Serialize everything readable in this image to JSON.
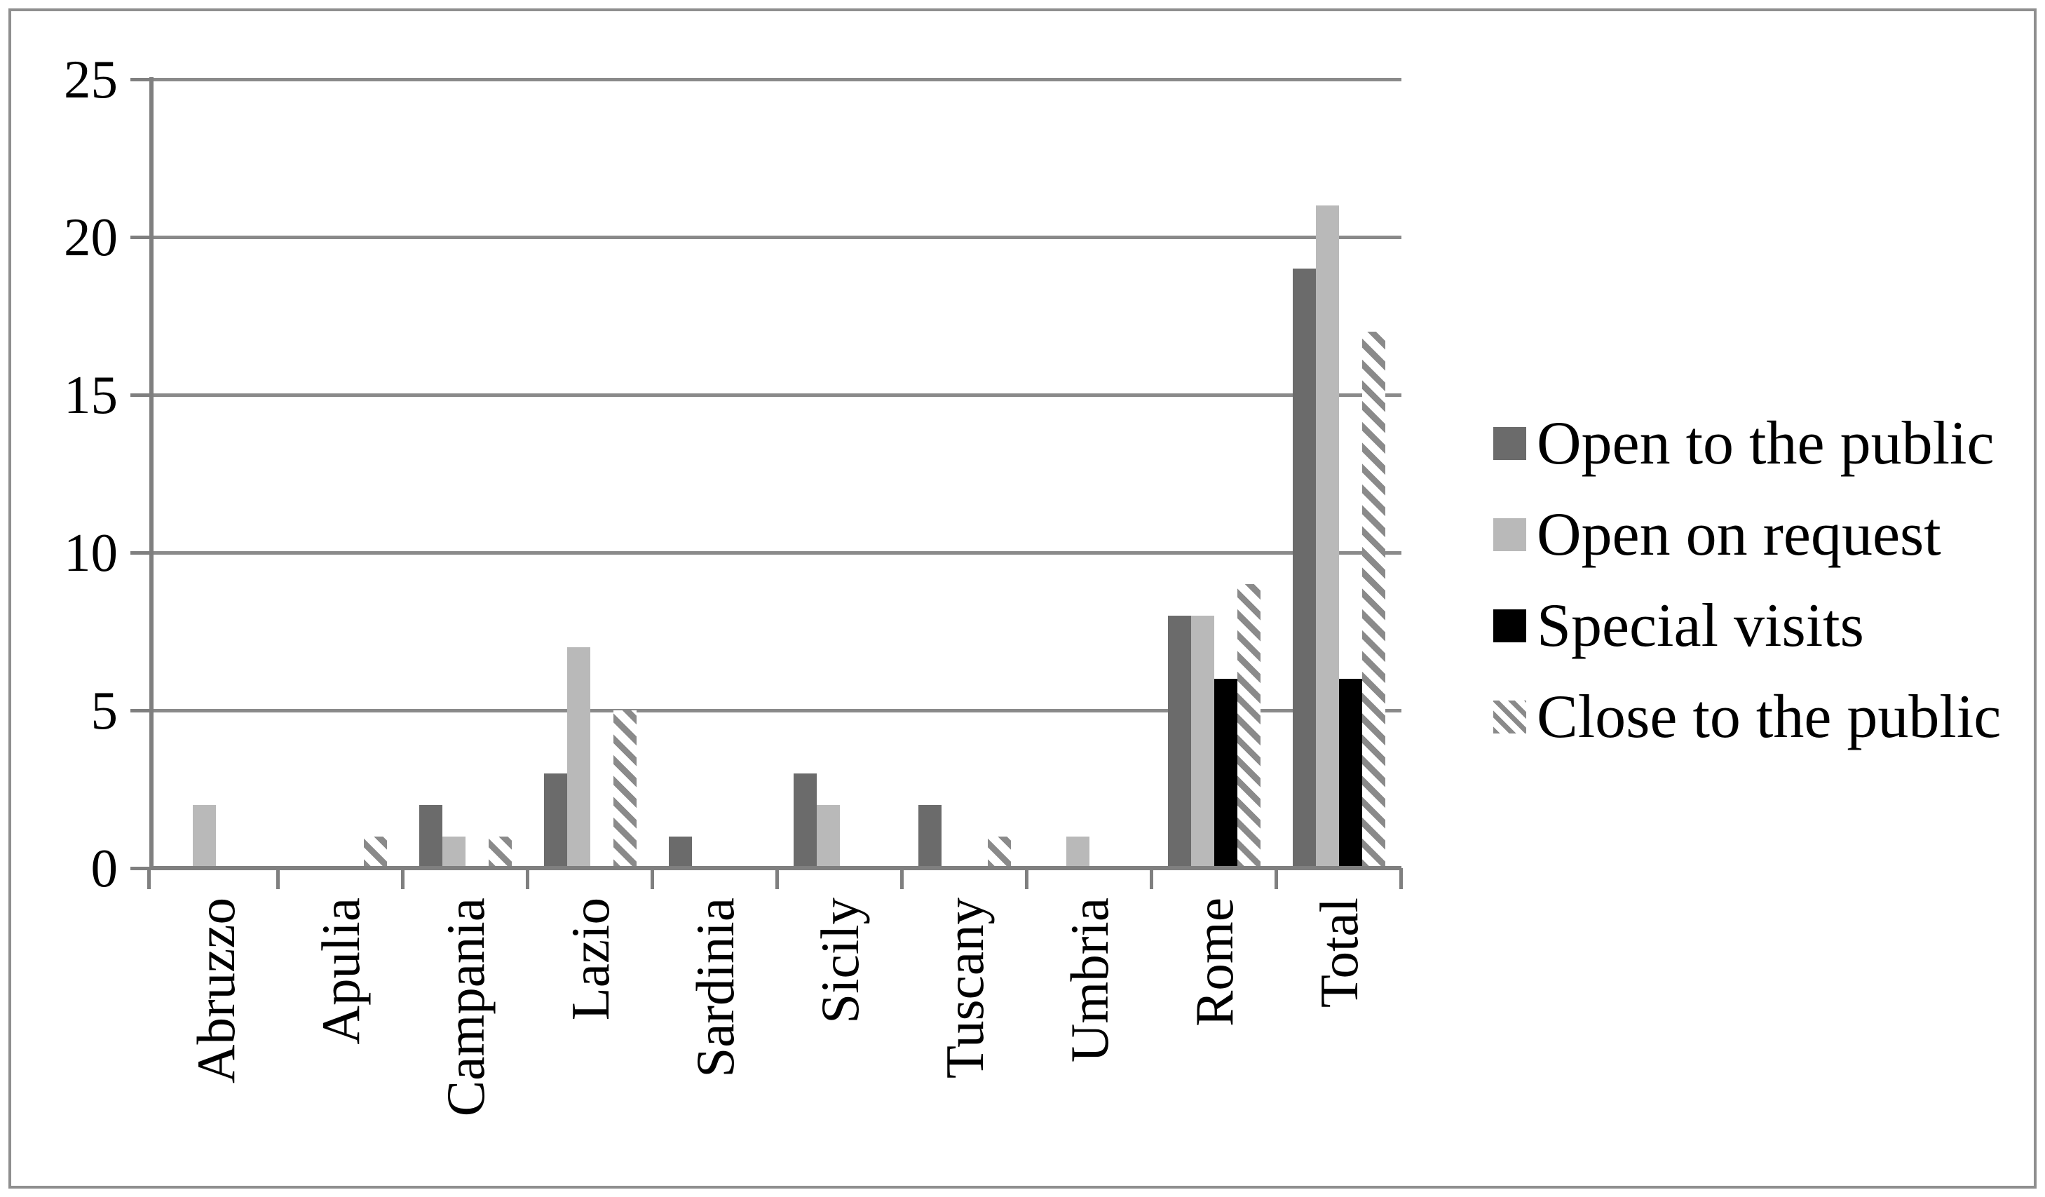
{
  "chart_data": {
    "type": "bar",
    "title": "",
    "categories": [
      "Abruzzo",
      "Apulia",
      "Campania",
      "Lazio",
      "Sardinia",
      "Sicily",
      "Tuscany",
      "Umbria",
      "Rome",
      "Total"
    ],
    "series": [
      {
        "name": "Open to the public",
        "swatch": "solid",
        "color": "#6b6b6b",
        "values": [
          0,
          0,
          2,
          3,
          1,
          3,
          2,
          0,
          8,
          19
        ]
      },
      {
        "name": "Open on request",
        "swatch": "solid",
        "color": "#b9b9b9",
        "values": [
          2,
          0,
          1,
          7,
          0,
          2,
          0,
          1,
          8,
          21
        ]
      },
      {
        "name": "Special visits",
        "swatch": "solid",
        "color": "#000000",
        "values": [
          0,
          0,
          0,
          0,
          0,
          0,
          0,
          0,
          6,
          6
        ]
      },
      {
        "name": "Close to the public",
        "swatch": "hatch",
        "color": "#8a8a8a",
        "hatch_bg": "#ffffff",
        "values": [
          0,
          1,
          1,
          5,
          0,
          0,
          1,
          0,
          9,
          17
        ]
      }
    ],
    "xlabel": "",
    "ylabel": "",
    "yticks": [
      0,
      5,
      10,
      15,
      20,
      25
    ],
    "ytick_labels": [
      "0",
      "5",
      "10",
      "15",
      "20",
      "25"
    ],
    "ylim": [
      0,
      25
    ],
    "grid": true,
    "legend_position": "right",
    "bar_orientation": "vertical",
    "category_label_rotation_deg": -90
  },
  "colors": {
    "axis": "#7f7f7f",
    "gridline": "#8a8a8a",
    "text": "#000000",
    "background": "#ffffff",
    "frame": "#8f8f8f"
  }
}
